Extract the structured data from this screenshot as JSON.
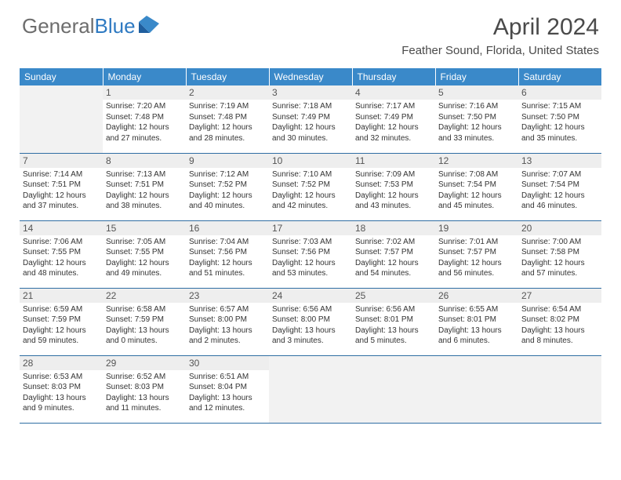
{
  "logo": {
    "word1": "General",
    "word2": "Blue"
  },
  "title": "April 2024",
  "location": "Feather Sound, Florida, United States",
  "colors": {
    "header_bg": "#3a89c9",
    "header_text": "#ffffff",
    "border": "#2f6ea3",
    "empty_cell": "#f2f2f2",
    "daynum_bg": "#eeeeee",
    "logo_gray": "#6d6d6d",
    "logo_blue": "#2f7ac2"
  },
  "weekdays": [
    "Sunday",
    "Monday",
    "Tuesday",
    "Wednesday",
    "Thursday",
    "Friday",
    "Saturday"
  ],
  "weeks": [
    [
      {
        "empty": true
      },
      {
        "day": "1",
        "sunrise": "Sunrise: 7:20 AM",
        "sunset": "Sunset: 7:48 PM",
        "daylight": "Daylight: 12 hours and 27 minutes."
      },
      {
        "day": "2",
        "sunrise": "Sunrise: 7:19 AM",
        "sunset": "Sunset: 7:48 PM",
        "daylight": "Daylight: 12 hours and 28 minutes."
      },
      {
        "day": "3",
        "sunrise": "Sunrise: 7:18 AM",
        "sunset": "Sunset: 7:49 PM",
        "daylight": "Daylight: 12 hours and 30 minutes."
      },
      {
        "day": "4",
        "sunrise": "Sunrise: 7:17 AM",
        "sunset": "Sunset: 7:49 PM",
        "daylight": "Daylight: 12 hours and 32 minutes."
      },
      {
        "day": "5",
        "sunrise": "Sunrise: 7:16 AM",
        "sunset": "Sunset: 7:50 PM",
        "daylight": "Daylight: 12 hours and 33 minutes."
      },
      {
        "day": "6",
        "sunrise": "Sunrise: 7:15 AM",
        "sunset": "Sunset: 7:50 PM",
        "daylight": "Daylight: 12 hours and 35 minutes."
      }
    ],
    [
      {
        "day": "7",
        "sunrise": "Sunrise: 7:14 AM",
        "sunset": "Sunset: 7:51 PM",
        "daylight": "Daylight: 12 hours and 37 minutes."
      },
      {
        "day": "8",
        "sunrise": "Sunrise: 7:13 AM",
        "sunset": "Sunset: 7:51 PM",
        "daylight": "Daylight: 12 hours and 38 minutes."
      },
      {
        "day": "9",
        "sunrise": "Sunrise: 7:12 AM",
        "sunset": "Sunset: 7:52 PM",
        "daylight": "Daylight: 12 hours and 40 minutes."
      },
      {
        "day": "10",
        "sunrise": "Sunrise: 7:10 AM",
        "sunset": "Sunset: 7:52 PM",
        "daylight": "Daylight: 12 hours and 42 minutes."
      },
      {
        "day": "11",
        "sunrise": "Sunrise: 7:09 AM",
        "sunset": "Sunset: 7:53 PM",
        "daylight": "Daylight: 12 hours and 43 minutes."
      },
      {
        "day": "12",
        "sunrise": "Sunrise: 7:08 AM",
        "sunset": "Sunset: 7:54 PM",
        "daylight": "Daylight: 12 hours and 45 minutes."
      },
      {
        "day": "13",
        "sunrise": "Sunrise: 7:07 AM",
        "sunset": "Sunset: 7:54 PM",
        "daylight": "Daylight: 12 hours and 46 minutes."
      }
    ],
    [
      {
        "day": "14",
        "sunrise": "Sunrise: 7:06 AM",
        "sunset": "Sunset: 7:55 PM",
        "daylight": "Daylight: 12 hours and 48 minutes."
      },
      {
        "day": "15",
        "sunrise": "Sunrise: 7:05 AM",
        "sunset": "Sunset: 7:55 PM",
        "daylight": "Daylight: 12 hours and 49 minutes."
      },
      {
        "day": "16",
        "sunrise": "Sunrise: 7:04 AM",
        "sunset": "Sunset: 7:56 PM",
        "daylight": "Daylight: 12 hours and 51 minutes."
      },
      {
        "day": "17",
        "sunrise": "Sunrise: 7:03 AM",
        "sunset": "Sunset: 7:56 PM",
        "daylight": "Daylight: 12 hours and 53 minutes."
      },
      {
        "day": "18",
        "sunrise": "Sunrise: 7:02 AM",
        "sunset": "Sunset: 7:57 PM",
        "daylight": "Daylight: 12 hours and 54 minutes."
      },
      {
        "day": "19",
        "sunrise": "Sunrise: 7:01 AM",
        "sunset": "Sunset: 7:57 PM",
        "daylight": "Daylight: 12 hours and 56 minutes."
      },
      {
        "day": "20",
        "sunrise": "Sunrise: 7:00 AM",
        "sunset": "Sunset: 7:58 PM",
        "daylight": "Daylight: 12 hours and 57 minutes."
      }
    ],
    [
      {
        "day": "21",
        "sunrise": "Sunrise: 6:59 AM",
        "sunset": "Sunset: 7:59 PM",
        "daylight": "Daylight: 12 hours and 59 minutes."
      },
      {
        "day": "22",
        "sunrise": "Sunrise: 6:58 AM",
        "sunset": "Sunset: 7:59 PM",
        "daylight": "Daylight: 13 hours and 0 minutes."
      },
      {
        "day": "23",
        "sunrise": "Sunrise: 6:57 AM",
        "sunset": "Sunset: 8:00 PM",
        "daylight": "Daylight: 13 hours and 2 minutes."
      },
      {
        "day": "24",
        "sunrise": "Sunrise: 6:56 AM",
        "sunset": "Sunset: 8:00 PM",
        "daylight": "Daylight: 13 hours and 3 minutes."
      },
      {
        "day": "25",
        "sunrise": "Sunrise: 6:56 AM",
        "sunset": "Sunset: 8:01 PM",
        "daylight": "Daylight: 13 hours and 5 minutes."
      },
      {
        "day": "26",
        "sunrise": "Sunrise: 6:55 AM",
        "sunset": "Sunset: 8:01 PM",
        "daylight": "Daylight: 13 hours and 6 minutes."
      },
      {
        "day": "27",
        "sunrise": "Sunrise: 6:54 AM",
        "sunset": "Sunset: 8:02 PM",
        "daylight": "Daylight: 13 hours and 8 minutes."
      }
    ],
    [
      {
        "day": "28",
        "sunrise": "Sunrise: 6:53 AM",
        "sunset": "Sunset: 8:03 PM",
        "daylight": "Daylight: 13 hours and 9 minutes."
      },
      {
        "day": "29",
        "sunrise": "Sunrise: 6:52 AM",
        "sunset": "Sunset: 8:03 PM",
        "daylight": "Daylight: 13 hours and 11 minutes."
      },
      {
        "day": "30",
        "sunrise": "Sunrise: 6:51 AM",
        "sunset": "Sunset: 8:04 PM",
        "daylight": "Daylight: 13 hours and 12 minutes."
      },
      {
        "empty": true
      },
      {
        "empty": true
      },
      {
        "empty": true
      },
      {
        "empty": true
      }
    ]
  ]
}
